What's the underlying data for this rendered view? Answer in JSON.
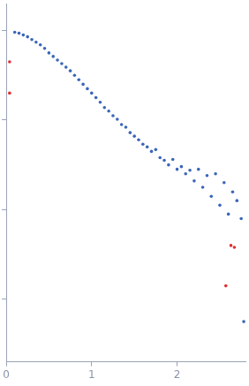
{
  "chart_data": {
    "type": "scatter",
    "log": "y",
    "grid": false,
    "tick_labels": "x",
    "xlim": [
      0,
      2.8
    ],
    "xticks": [
      0,
      1,
      2
    ],
    "ylim": [
      2e-05,
      0.2
    ],
    "yticks": [
      0.0001,
      0.001,
      0.01,
      0.1
    ],
    "series": [
      {
        "color": "#3a66b8",
        "marker": "circle",
        "x": [
          0.1,
          0.15,
          0.2,
          0.25,
          0.3,
          0.35,
          0.4,
          0.45,
          0.5,
          0.55,
          0.6,
          0.65,
          0.7,
          0.75,
          0.8,
          0.85,
          0.9,
          0.95,
          1.0,
          1.05,
          1.1,
          1.15,
          1.2,
          1.25,
          1.3,
          1.35,
          1.4,
          1.45,
          1.5,
          1.55,
          1.6,
          1.65,
          1.7,
          1.75,
          1.8,
          1.85,
          1.9,
          1.95,
          2.0,
          2.05,
          2.1,
          2.15,
          2.2,
          2.25,
          2.3,
          2.35,
          2.4,
          2.45,
          2.5,
          2.55,
          2.6,
          2.65,
          2.7,
          2.75,
          2.78
        ],
        "values": [
          0.0955,
          0.0933,
          0.0891,
          0.0851,
          0.0794,
          0.0741,
          0.0692,
          0.0631,
          0.0562,
          0.0513,
          0.0468,
          0.0427,
          0.0389,
          0.0355,
          0.0316,
          0.0282,
          0.0251,
          0.0224,
          0.02,
          0.0178,
          0.0158,
          0.0138,
          0.0126,
          0.0112,
          0.0102,
          0.00891,
          0.00832,
          0.00724,
          0.00661,
          0.00603,
          0.00537,
          0.00501,
          0.00447,
          0.00468,
          0.0038,
          0.00355,
          0.00316,
          0.00363,
          0.00282,
          0.00302,
          0.00251,
          0.00275,
          0.00209,
          0.00282,
          0.00178,
          0.0024,
          0.00141,
          0.00251,
          0.00112,
          0.002,
          0.000891,
          0.00158,
          0.00126,
          0.000794,
          5.62e-05
        ]
      },
      {
        "color": "#e03030",
        "marker": "circle",
        "x": [
          0.04,
          0.04,
          2.57,
          2.63,
          2.67
        ],
        "values": [
          0.0447,
          0.02,
          0.000141,
          0.000398,
          0.00038
        ]
      }
    ]
  }
}
